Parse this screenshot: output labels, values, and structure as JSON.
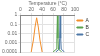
{
  "chart_data": {
    "type": "line",
    "x_label": "Temperature (°C)",
    "xlim": [
      0,
      100
    ],
    "xticks": [
      0,
      20,
      40,
      60,
      80,
      100
    ],
    "ylim": [
      0.0001,
      1
    ],
    "yticks": [
      0.0001,
      0.001,
      0.01,
      0.1,
      1
    ],
    "log": "y",
    "grid": true,
    "legend": "right",
    "series": [
      {
        "name": "A",
        "color": "#f28e2b",
        "x": [
          20,
          24,
          27,
          30,
          33,
          36,
          40
        ],
        "values": [
          0.0001,
          0.002,
          0.05,
          0.5,
          0.05,
          0.002,
          0.0001
        ]
      },
      {
        "name": "B",
        "color": "#59a14f",
        "x": [
          60,
          66,
          67,
          68,
          69,
          70,
          76
        ],
        "values": [
          0.0001,
          0.0002,
          0.003,
          0.8,
          0.003,
          0.0002,
          0.0001
        ]
      },
      {
        "name": "C",
        "color": "#4e79a7",
        "x": [
          65,
          71,
          72,
          73,
          74,
          75,
          81
        ],
        "values": [
          0.0001,
          0.0002,
          0.003,
          0.8,
          0.003,
          0.0002,
          0.0001
        ]
      }
    ]
  }
}
